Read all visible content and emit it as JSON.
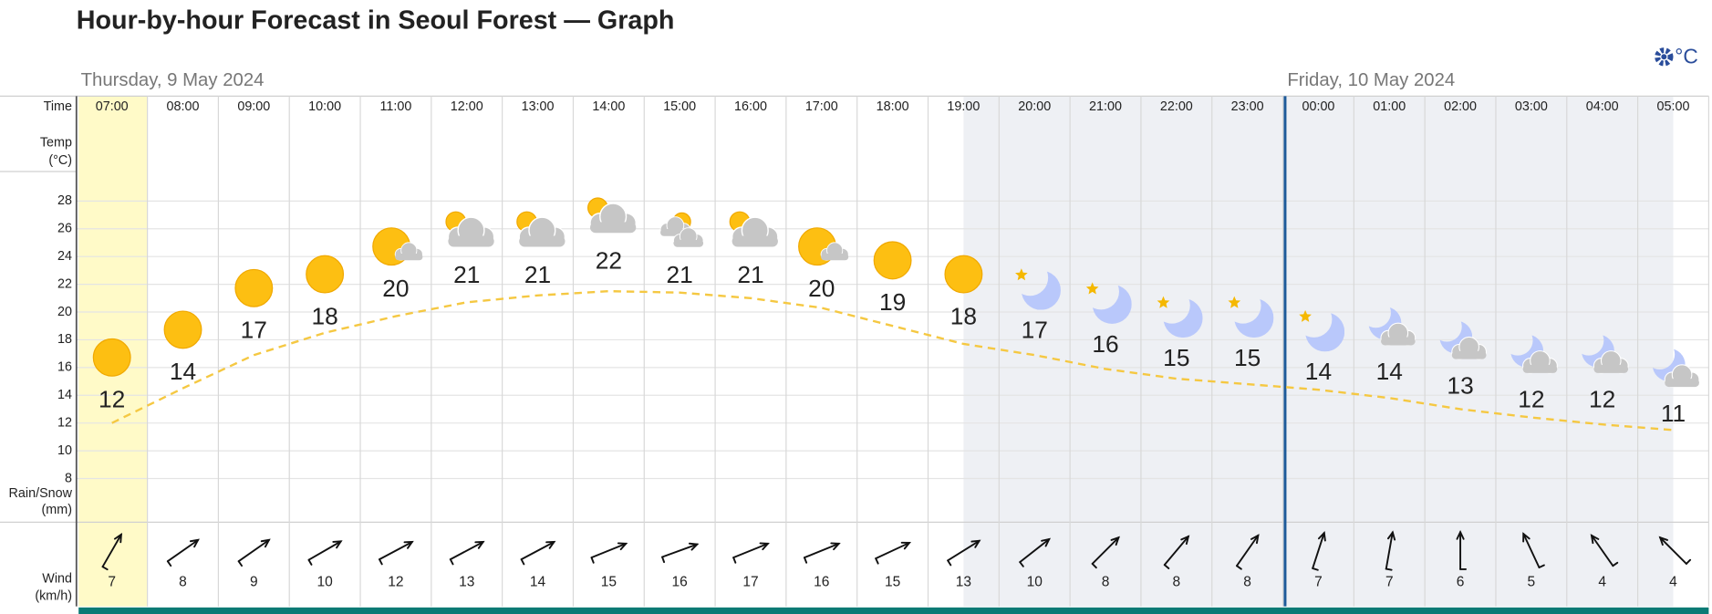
{
  "title": "Hour-by-hour Forecast in Seoul Forest — Graph",
  "units_button": "°C",
  "row_labels": {
    "time": "Time",
    "temp": "Temp",
    "temp_unit": "(°C)",
    "rain": "Rain/Snow",
    "rain_unit": "(mm)",
    "wind": "Wind",
    "wind_unit": "(km/h)"
  },
  "chart_data": {
    "type": "line",
    "days": [
      {
        "label": "Thursday, 9 May 2024",
        "times": [
          "07:00",
          "08:00",
          "09:00",
          "10:00",
          "11:00",
          "12:00",
          "13:00",
          "14:00",
          "15:00",
          "16:00",
          "17:00",
          "18:00",
          "19:00",
          "20:00",
          "21:00",
          "22:00",
          "23:00"
        ]
      },
      {
        "label": "Friday, 10 May 2024",
        "times": [
          "00:00",
          "01:00",
          "02:00",
          "03:00",
          "04:00",
          "05:00"
        ]
      }
    ],
    "ylim": [
      8,
      28
    ],
    "yticks": [
      8,
      10,
      12,
      14,
      16,
      18,
      20,
      22,
      24,
      26,
      28
    ],
    "grid": true,
    "icons": [
      "sun",
      "sun",
      "sun",
      "sun",
      "sun-cloud",
      "cloud-sun",
      "cloud-sun",
      "cloud-sun",
      "cloudy",
      "cloud-sun",
      "sun-cloud",
      "sun",
      "sun",
      "moon-star",
      "moon-star",
      "moon-star",
      "moon-star",
      "moon-star",
      "moon-cloud",
      "moon-cloud",
      "moon-cloud",
      "moon-cloud",
      "moon-cloud"
    ],
    "temperature": [
      12,
      14,
      17,
      18,
      20,
      21,
      21,
      22,
      21,
      21,
      20,
      19,
      18,
      17,
      16,
      15,
      15,
      14,
      14,
      13,
      12,
      12,
      11
    ],
    "trend": [
      12.0,
      14.5,
      16.9,
      18.5,
      19.7,
      20.7,
      21.2,
      21.5,
      21.4,
      21.0,
      20.3,
      19.0,
      17.7,
      16.9,
      15.9,
      15.2,
      14.8,
      14.4,
      13.8,
      13.0,
      12.4,
      11.9,
      11.5
    ],
    "trend_color": "#f5c842",
    "wind_speed": [
      7,
      8,
      9,
      10,
      12,
      13,
      14,
      15,
      16,
      17,
      16,
      15,
      13,
      10,
      8,
      8,
      8,
      7,
      7,
      6,
      5,
      4,
      4
    ],
    "wind_direction": [
      30,
      55,
      55,
      60,
      62,
      62,
      62,
      68,
      70,
      68,
      68,
      65,
      58,
      52,
      45,
      40,
      35,
      18,
      10,
      0,
      335,
      325,
      315
    ]
  }
}
